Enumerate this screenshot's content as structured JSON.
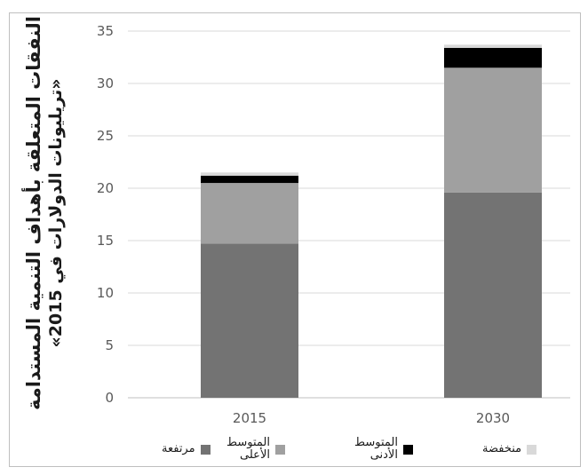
{
  "chart_data": {
    "type": "bar",
    "stacked": true,
    "ylabel_line1": "النفقات المتعلقة بأهداف التنمية المستدامة",
    "ylabel_line2": "«تريليونات الدولارات في 2015»",
    "categories": [
      "2015",
      "2030"
    ],
    "ylim": [
      0,
      35
    ],
    "yticks": [
      0,
      5,
      10,
      15,
      20,
      25,
      30,
      35
    ],
    "grid": true,
    "legend_position": "bottom",
    "series": [
      {
        "name": "مرتفعة",
        "color": "#737373",
        "values": [
          14.7,
          19.6
        ]
      },
      {
        "name": "المتوسط\nالأعلى",
        "color": "#a0a0a0",
        "values": [
          5.8,
          11.9
        ]
      },
      {
        "name": "المتوسط\nالأدنى",
        "color": "#000000",
        "values": [
          0.7,
          1.9
        ]
      },
      {
        "name": "منخفضة",
        "color": "#d9d9d9",
        "values": [
          0.3,
          0.3
        ]
      }
    ]
  }
}
